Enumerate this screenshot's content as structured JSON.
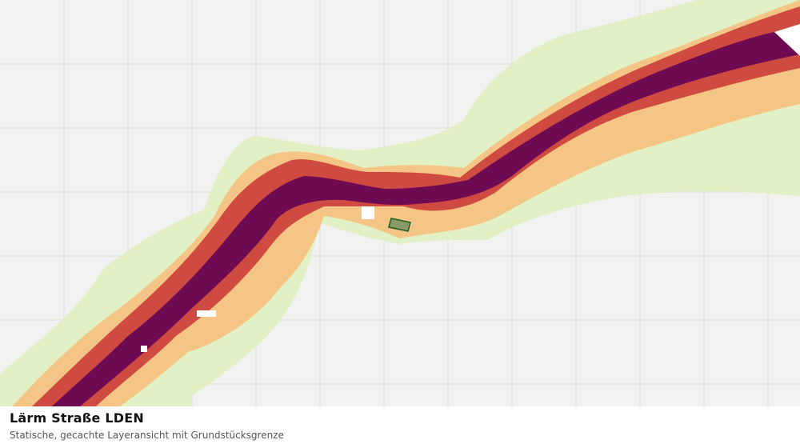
{
  "map": {
    "layer_name": "Lärm Straße LDEN",
    "colors": {
      "background": "#f2f2f0",
      "grid": "#dcdcd8",
      "band_lowest": "#e2f0c6",
      "band_low": "#f4c584",
      "band_mid": "#cf4a40",
      "band_high": "#6e0a52",
      "parcel_fill": "#8a9a66",
      "parcel_stroke": "#1e5a24"
    },
    "parcel": {
      "label": "Grundstücksgrenze"
    }
  },
  "caption": {
    "title": "Lärm Straße LDEN",
    "subtitle": "Statische, gecachte Layeransicht mit Grundstücksgrenze"
  }
}
